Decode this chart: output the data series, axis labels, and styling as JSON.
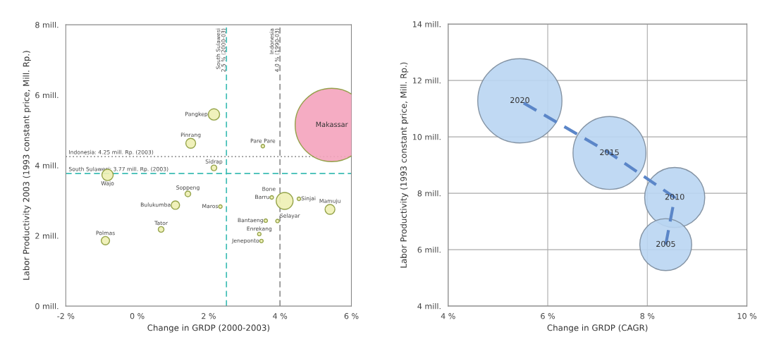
{
  "chart_data": [
    {
      "type": "bubble",
      "xlabel": "Change in GRDP (2000-2003)",
      "ylabel": "Labor Productivity 2003 (1993 constant price, Mill. Rp.)",
      "xlim": [
        -2,
        6
      ],
      "xticks": [
        {
          "value": -2,
          "label": "-2 %"
        },
        {
          "value": 0,
          "label": "0 %"
        },
        {
          "value": 2,
          "label": "2 %"
        },
        {
          "value": 4,
          "label": "4 %"
        },
        {
          "value": 6,
          "label": "6 %"
        }
      ],
      "ylim": [
        0,
        8
      ],
      "yticks": [
        {
          "value": 0,
          "label": "0 mill."
        },
        {
          "value": 2,
          "label": "2 mill."
        },
        {
          "value": 4,
          "label": "4 mill."
        },
        {
          "value": 6,
          "label": "6 mill."
        },
        {
          "value": 8,
          "label": "8 mill."
        }
      ],
      "grid": false,
      "ref_lines": [
        {
          "axis": "x",
          "value": 2.5,
          "label": "South Sulawesi\n2.5 % (2000-03)",
          "color": "#3cbcb4",
          "line_style": "dashed"
        },
        {
          "axis": "x",
          "value": 4.0,
          "label": "Indonesia\n4.0 % (1990-03)",
          "color": "#8c8c8c",
          "line_style": "dashed"
        },
        {
          "axis": "y",
          "value": 4.25,
          "label": "Indonesia: 4.25 mill. Rp. (2003)",
          "color": "#8c8c8c",
          "line_style": "dotted"
        },
        {
          "axis": "y",
          "value": 3.77,
          "label": "South Sulawesi: 3.77 mill. Rp. (2003)",
          "color": "#3cbcb4",
          "line_style": "dashed"
        }
      ],
      "series": [
        {
          "name": "Wajo",
          "x": [
            -0.83
          ],
          "values": [
            3.73
          ],
          "sizes": [
            0.024
          ],
          "color": "#eef0b4"
        },
        {
          "name": "Bulukumba",
          "x": [
            1.07
          ],
          "values": [
            2.87
          ],
          "sizes": [
            0.013
          ],
          "color": "#eef0b4"
        },
        {
          "name": "Polmas",
          "x": [
            -0.89
          ],
          "values": [
            1.86
          ],
          "sizes": [
            0.013
          ],
          "color": "#eef0b4"
        },
        {
          "name": "Tator",
          "x": [
            0.67
          ],
          "values": [
            2.18
          ],
          "sizes": [
            0.006
          ],
          "color": "#eef0b4"
        },
        {
          "name": "Soppeng",
          "x": [
            1.42
          ],
          "values": [
            3.19
          ],
          "sizes": [
            0.006
          ],
          "color": "#eef0b4"
        },
        {
          "name": "Pinrang",
          "x": [
            1.5
          ],
          "values": [
            4.63
          ],
          "sizes": [
            0.018
          ],
          "color": "#eef0b4"
        },
        {
          "name": "Pangkep",
          "x": [
            2.15
          ],
          "values": [
            5.45
          ],
          "sizes": [
            0.024
          ],
          "color": "#eef0b4"
        },
        {
          "name": "Sidrap",
          "x": [
            2.15
          ],
          "values": [
            3.93
          ],
          "sizes": [
            0.006
          ],
          "color": "#eef0b4"
        },
        {
          "name": "Maros",
          "x": [
            2.33
          ],
          "values": [
            2.83
          ],
          "sizes": [
            0.0023
          ],
          "color": "#eef0b4"
        },
        {
          "name": "Pare Pare",
          "x": [
            3.52
          ],
          "values": [
            4.55
          ],
          "sizes": [
            0.0023
          ],
          "color": "#eef0b4"
        },
        {
          "name": "Barru",
          "x": [
            3.77
          ],
          "values": [
            3.09
          ],
          "sizes": [
            0.0023
          ],
          "color": "#eef0b4"
        },
        {
          "name": "Bone",
          "x": [
            4.13
          ],
          "values": [
            2.99
          ],
          "sizes": [
            0.053
          ],
          "color": "#eef0b4"
        },
        {
          "name": "Sinjai",
          "x": [
            4.53
          ],
          "values": [
            3.05
          ],
          "sizes": [
            0.0023
          ],
          "color": "#eef0b4"
        },
        {
          "name": "Mamuju",
          "x": [
            5.4
          ],
          "values": [
            2.75
          ],
          "sizes": [
            0.018
          ],
          "color": "#eef0b4"
        },
        {
          "name": "Bantaeng",
          "x": [
            3.6
          ],
          "values": [
            2.43
          ],
          "sizes": [
            0.0023
          ],
          "color": "#eef0b4"
        },
        {
          "name": "Enrekang",
          "x": [
            3.42
          ],
          "values": [
            2.05
          ],
          "sizes": [
            0.0023
          ],
          "color": "#eef0b4"
        },
        {
          "name": "Selayar",
          "x": [
            3.93
          ],
          "values": [
            2.42
          ],
          "sizes": [
            0.0023
          ],
          "color": "#eef0b4"
        },
        {
          "name": "Jeneponto",
          "x": [
            3.48
          ],
          "values": [
            1.85
          ],
          "sizes": [
            0.0023
          ],
          "color": "#eef0b4"
        },
        {
          "name": "Makassar",
          "x": [
            5.45
          ],
          "values": [
            5.15
          ],
          "sizes": [
            1
          ],
          "color": "#f4a3bd"
        }
      ]
    },
    {
      "type": "bubble",
      "xlabel": "Change in GRDP (CAGR)",
      "ylabel": "Labor Productivity (1993 constant price, Mill. Rp.)",
      "xlim": [
        4,
        10
      ],
      "xticks": [
        {
          "value": 4,
          "label": "4 %"
        },
        {
          "value": 6,
          "label": "6 %"
        },
        {
          "value": 8,
          "label": "8 %"
        },
        {
          "value": 10,
          "label": "10 %"
        }
      ],
      "ylim": [
        4,
        14
      ],
      "yticks": [
        {
          "value": 4,
          "label": "4 mill."
        },
        {
          "value": 6,
          "label": "6 mill."
        },
        {
          "value": 8,
          "label": "8 mill."
        },
        {
          "value": 10,
          "label": "10 mill."
        },
        {
          "value": 12,
          "label": "12 mill."
        },
        {
          "value": 14,
          "label": "14 mill."
        }
      ],
      "grid": true,
      "series": [
        {
          "name": "2020",
          "x": [
            5.44
          ],
          "values": [
            11.28
          ],
          "sizes": [
            1
          ],
          "color": "#b9d5f2"
        },
        {
          "name": "2015",
          "x": [
            7.24
          ],
          "values": [
            9.43
          ],
          "sizes": [
            0.75
          ],
          "color": "#b9d5f2"
        },
        {
          "name": "2010",
          "x": [
            8.55
          ],
          "values": [
            7.85
          ],
          "sizes": [
            0.51
          ],
          "color": "#b9d5f2"
        },
        {
          "name": "2005",
          "x": [
            8.37
          ],
          "values": [
            6.18
          ],
          "sizes": [
            0.38
          ],
          "color": "#b9d5f2"
        },
        {
          "type": "line",
          "x": [
            8.37,
            8.55,
            7.24,
            5.44
          ],
          "values": [
            6.18,
            7.85,
            9.43,
            11.28
          ],
          "color": "#5b86c8",
          "line_style": "dashed"
        }
      ]
    }
  ]
}
